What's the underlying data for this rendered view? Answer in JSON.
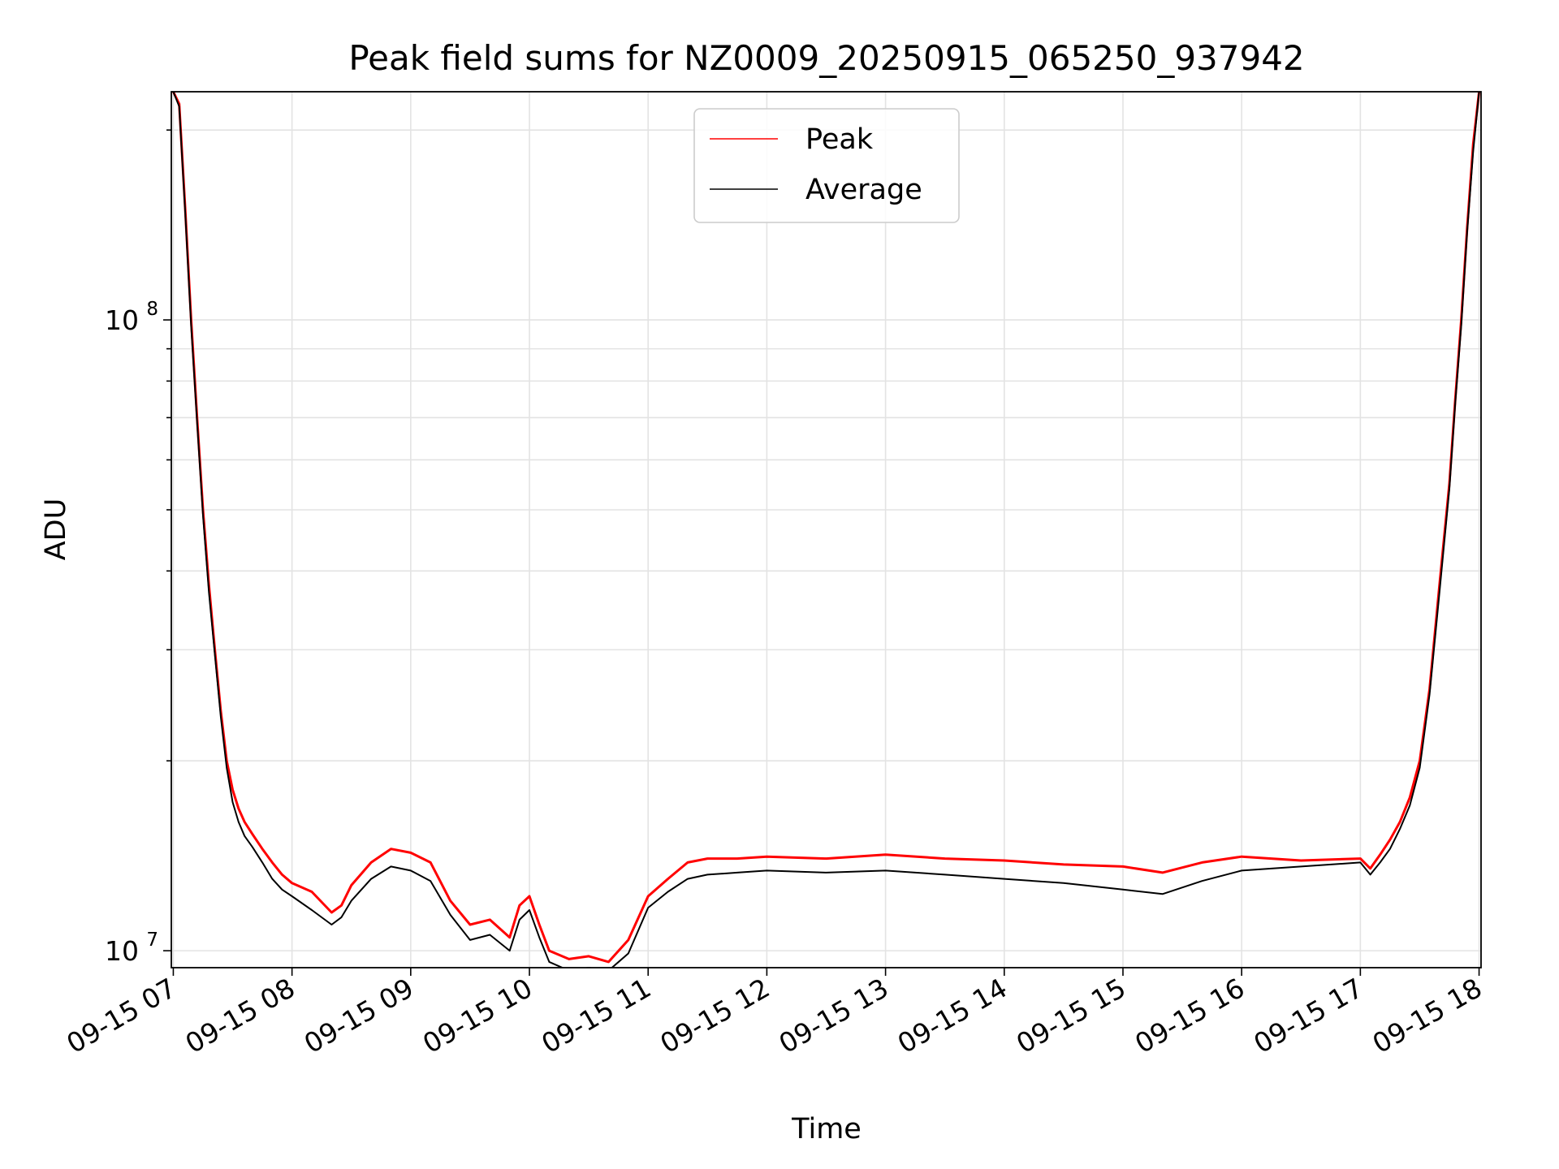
{
  "chart_data": {
    "type": "line",
    "title": "Peak field sums for NZ0009_20250915_065250_937942",
    "xlabel": "Time",
    "ylabel": "ADU",
    "yscale": "log",
    "ylim": [
      9400000,
      230000000
    ],
    "xlim": [
      "2025-09-15T06:59:00",
      "2025-09-15T18:01:00"
    ],
    "x_ticks": [
      "09-15 07",
      "09-15 08",
      "09-15 09",
      "09-15 10",
      "09-15 11",
      "09-15 12",
      "09-15 13",
      "09-15 14",
      "09-15 15",
      "09-15 16",
      "09-15 17",
      "09-15 18"
    ],
    "y_ticks": [
      {
        "value": 10000000,
        "base": "10",
        "exp": "7"
      },
      {
        "value": 100000000,
        "base": "10",
        "exp": "8"
      }
    ],
    "y_minor_ticks": [
      20000000,
      30000000,
      40000000,
      50000000,
      60000000,
      70000000,
      80000000,
      90000000,
      200000000
    ],
    "grid": true,
    "legend_position": "top-center",
    "series": [
      {
        "name": "Peak",
        "color": "#ff0000",
        "x": [
          "2025-09-15T07:00",
          "2025-09-15T07:03",
          "2025-09-15T07:06",
          "2025-09-15T07:09",
          "2025-09-15T07:12",
          "2025-09-15T07:15",
          "2025-09-15T07:18",
          "2025-09-15T07:21",
          "2025-09-15T07:24",
          "2025-09-15T07:27",
          "2025-09-15T07:30",
          "2025-09-15T07:33",
          "2025-09-15T07:36",
          "2025-09-15T07:40",
          "2025-09-15T07:45",
          "2025-09-15T07:50",
          "2025-09-15T07:55",
          "2025-09-15T08:00",
          "2025-09-15T08:10",
          "2025-09-15T08:20",
          "2025-09-15T08:25",
          "2025-09-15T08:30",
          "2025-09-15T08:40",
          "2025-09-15T08:50",
          "2025-09-15T09:00",
          "2025-09-15T09:10",
          "2025-09-15T09:20",
          "2025-09-15T09:30",
          "2025-09-15T09:40",
          "2025-09-15T09:50",
          "2025-09-15T09:55",
          "2025-09-15T10:00",
          "2025-09-15T10:05",
          "2025-09-15T10:10",
          "2025-09-15T10:20",
          "2025-09-15T10:30",
          "2025-09-15T10:40",
          "2025-09-15T10:50",
          "2025-09-15T11:00",
          "2025-09-15T11:10",
          "2025-09-15T11:20",
          "2025-09-15T11:30",
          "2025-09-15T11:45",
          "2025-09-15T12:00",
          "2025-09-15T12:30",
          "2025-09-15T13:00",
          "2025-09-15T13:30",
          "2025-09-15T14:00",
          "2025-09-15T14:30",
          "2025-09-15T15:00",
          "2025-09-15T15:20",
          "2025-09-15T15:40",
          "2025-09-15T16:00",
          "2025-09-15T16:30",
          "2025-09-15T17:00",
          "2025-09-15T17:05",
          "2025-09-15T17:10",
          "2025-09-15T17:15",
          "2025-09-15T17:20",
          "2025-09-15T17:25",
          "2025-09-15T17:30",
          "2025-09-15T17:35",
          "2025-09-15T17:40",
          "2025-09-15T17:45",
          "2025-09-15T17:48",
          "2025-09-15T17:51",
          "2025-09-15T17:54",
          "2025-09-15T17:57",
          "2025-09-15T18:00"
        ],
        "y": [
          230000000,
          220000000,
          150000000,
          100000000,
          70000000,
          50000000,
          38000000,
          30000000,
          24000000,
          20000000,
          18000000,
          16800000,
          16000000,
          15300000,
          14500000,
          13800000,
          13200000,
          12800000,
          12400000,
          11500000,
          11800000,
          12700000,
          13800000,
          14500000,
          14300000,
          13800000,
          12000000,
          11000000,
          11200000,
          10500000,
          11800000,
          12200000,
          11000000,
          10000000,
          9700000,
          9800000,
          9600000,
          10400000,
          12200000,
          13000000,
          13800000,
          14000000,
          14000000,
          14100000,
          14000000,
          14200000,
          14000000,
          13900000,
          13700000,
          13600000,
          13300000,
          13800000,
          14100000,
          13900000,
          14000000,
          13500000,
          14200000,
          15000000,
          16000000,
          17500000,
          20000000,
          26000000,
          38000000,
          55000000,
          75000000,
          100000000,
          140000000,
          190000000,
          230000000
        ]
      },
      {
        "name": "Average",
        "color": "#000000",
        "x": [
          "2025-09-15T07:00",
          "2025-09-15T07:03",
          "2025-09-15T07:06",
          "2025-09-15T07:09",
          "2025-09-15T07:12",
          "2025-09-15T07:15",
          "2025-09-15T07:18",
          "2025-09-15T07:21",
          "2025-09-15T07:24",
          "2025-09-15T07:27",
          "2025-09-15T07:30",
          "2025-09-15T07:33",
          "2025-09-15T07:36",
          "2025-09-15T07:40",
          "2025-09-15T07:45",
          "2025-09-15T07:50",
          "2025-09-15T07:55",
          "2025-09-15T08:00",
          "2025-09-15T08:10",
          "2025-09-15T08:20",
          "2025-09-15T08:25",
          "2025-09-15T08:30",
          "2025-09-15T08:40",
          "2025-09-15T08:50",
          "2025-09-15T09:00",
          "2025-09-15T09:10",
          "2025-09-15T09:20",
          "2025-09-15T09:30",
          "2025-09-15T09:40",
          "2025-09-15T09:50",
          "2025-09-15T09:55",
          "2025-09-15T10:00",
          "2025-09-15T10:05",
          "2025-09-15T10:10",
          "2025-09-15T10:20",
          "2025-09-15T10:30",
          "2025-09-15T10:40",
          "2025-09-15T10:50",
          "2025-09-15T11:00",
          "2025-09-15T11:10",
          "2025-09-15T11:20",
          "2025-09-15T11:30",
          "2025-09-15T11:45",
          "2025-09-15T12:00",
          "2025-09-15T12:30",
          "2025-09-15T13:00",
          "2025-09-15T13:30",
          "2025-09-15T14:00",
          "2025-09-15T14:30",
          "2025-09-15T15:00",
          "2025-09-15T15:20",
          "2025-09-15T15:40",
          "2025-09-15T16:00",
          "2025-09-15T16:30",
          "2025-09-15T17:00",
          "2025-09-15T17:05",
          "2025-09-15T17:10",
          "2025-09-15T17:15",
          "2025-09-15T17:20",
          "2025-09-15T17:25",
          "2025-09-15T17:30",
          "2025-09-15T17:35",
          "2025-09-15T17:40",
          "2025-09-15T17:45",
          "2025-09-15T17:48",
          "2025-09-15T17:51",
          "2025-09-15T17:54",
          "2025-09-15T17:57",
          "2025-09-15T18:00"
        ],
        "y": [
          230000000,
          218000000,
          148000000,
          98000000,
          69000000,
          49000000,
          37000000,
          29500000,
          23500000,
          19500000,
          17200000,
          16000000,
          15200000,
          14600000,
          13800000,
          13000000,
          12500000,
          12200000,
          11600000,
          11000000,
          11300000,
          12000000,
          13000000,
          13600000,
          13400000,
          12900000,
          11400000,
          10400000,
          10600000,
          10000000,
          11200000,
          11600000,
          10500000,
          9600000,
          9300000,
          9400000,
          9300000,
          9900000,
          11700000,
          12400000,
          13000000,
          13200000,
          13300000,
          13400000,
          13300000,
          13400000,
          13200000,
          13000000,
          12800000,
          12500000,
          12300000,
          12900000,
          13400000,
          13600000,
          13800000,
          13200000,
          13800000,
          14500000,
          15600000,
          17000000,
          19500000,
          25500000,
          37000000,
          54000000,
          74000000,
          98000000,
          138000000,
          185000000,
          230000000
        ]
      }
    ]
  }
}
